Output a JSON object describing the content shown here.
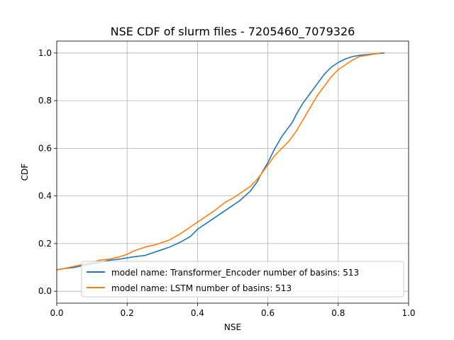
{
  "chart_data": {
    "type": "line",
    "title": "NSE CDF of slurm files - 7205460_7079326",
    "xlabel": "NSE",
    "ylabel": "CDF",
    "xlim": [
      0.0,
      1.0
    ],
    "ylim": [
      -0.05,
      1.05
    ],
    "x_ticks": [
      0.0,
      0.2,
      0.4,
      0.6,
      0.8,
      1.0
    ],
    "x_tick_labels": [
      "0.0",
      "0.2",
      "0.4",
      "0.6",
      "0.8",
      "1.0"
    ],
    "y_ticks": [
      0.0,
      0.2,
      0.4,
      0.6,
      0.8,
      1.0
    ],
    "y_tick_labels": [
      "0.0",
      "0.2",
      "0.4",
      "0.6",
      "0.8",
      "1.0"
    ],
    "grid": true,
    "legend_position": "lower-right",
    "series": [
      {
        "name": "model name: Transformer_Encoder number of basins: 513",
        "color": "#1f77b4",
        "x": [
          0.0,
          0.02,
          0.05,
          0.08,
          0.1,
          0.12,
          0.15,
          0.18,
          0.2,
          0.22,
          0.25,
          0.28,
          0.3,
          0.32,
          0.35,
          0.38,
          0.4,
          0.42,
          0.45,
          0.48,
          0.5,
          0.52,
          0.55,
          0.57,
          0.58,
          0.6,
          0.62,
          0.64,
          0.65,
          0.67,
          0.68,
          0.7,
          0.72,
          0.74,
          0.76,
          0.78,
          0.8,
          0.82,
          0.84,
          0.86,
          0.88,
          0.9,
          0.93
        ],
        "y": [
          0.09,
          0.095,
          0.1,
          0.11,
          0.115,
          0.12,
          0.13,
          0.135,
          0.14,
          0.145,
          0.15,
          0.165,
          0.175,
          0.185,
          0.205,
          0.23,
          0.26,
          0.28,
          0.31,
          0.34,
          0.36,
          0.38,
          0.42,
          0.46,
          0.49,
          0.54,
          0.6,
          0.65,
          0.67,
          0.71,
          0.74,
          0.79,
          0.83,
          0.87,
          0.91,
          0.94,
          0.96,
          0.975,
          0.985,
          0.99,
          0.993,
          0.996,
          1.0
        ]
      },
      {
        "name": "model name: LSTM number of basins: 513",
        "color": "#ff7f0e",
        "x": [
          0.0,
          0.02,
          0.05,
          0.08,
          0.1,
          0.12,
          0.15,
          0.18,
          0.2,
          0.22,
          0.25,
          0.28,
          0.3,
          0.32,
          0.35,
          0.38,
          0.4,
          0.42,
          0.45,
          0.48,
          0.5,
          0.52,
          0.55,
          0.57,
          0.58,
          0.6,
          0.62,
          0.64,
          0.66,
          0.68,
          0.7,
          0.72,
          0.74,
          0.76,
          0.78,
          0.8,
          0.82,
          0.84,
          0.86,
          0.88,
          0.9,
          0.92
        ],
        "y": [
          0.09,
          0.095,
          0.105,
          0.115,
          0.12,
          0.13,
          0.135,
          0.145,
          0.155,
          0.17,
          0.185,
          0.195,
          0.205,
          0.215,
          0.24,
          0.27,
          0.29,
          0.31,
          0.34,
          0.375,
          0.39,
          0.41,
          0.44,
          0.47,
          0.49,
          0.53,
          0.57,
          0.6,
          0.63,
          0.67,
          0.72,
          0.77,
          0.82,
          0.86,
          0.9,
          0.93,
          0.95,
          0.97,
          0.985,
          0.99,
          0.995,
          1.0
        ]
      }
    ]
  }
}
